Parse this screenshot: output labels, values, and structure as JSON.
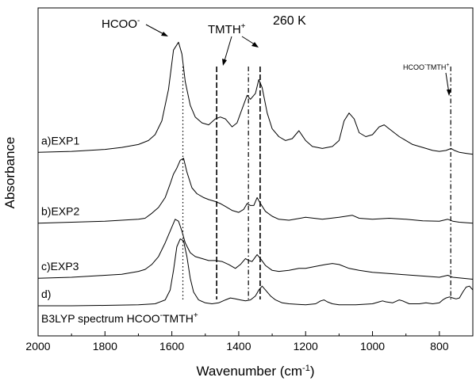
{
  "chart_data": {
    "type": "line",
    "title": "260 K",
    "xlabel": "Wavenumber (cm",
    "xlabel_sup": "-1",
    "xlabel_end": ")",
    "ylabel": "Absorbance",
    "xlim": [
      2000,
      700
    ],
    "x_reversed": true,
    "x_ticks": [
      2000,
      1800,
      1600,
      1400,
      1200,
      1000,
      800
    ],
    "y_ticks_shown": false,
    "grid": false,
    "series": [
      {
        "name": "a)EXP1",
        "label": "a)EXP1",
        "offset": 0.78,
        "points": [
          [
            2000,
            0.0
          ],
          [
            1900,
            0.005
          ],
          [
            1800,
            0.015
          ],
          [
            1750,
            0.025
          ],
          [
            1700,
            0.04
          ],
          [
            1670,
            0.06
          ],
          [
            1650,
            0.09
          ],
          [
            1630,
            0.16
          ],
          [
            1610,
            0.32
          ],
          [
            1595,
            0.52
          ],
          [
            1580,
            0.56
          ],
          [
            1570,
            0.5
          ],
          [
            1560,
            0.36
          ],
          [
            1545,
            0.24
          ],
          [
            1530,
            0.18
          ],
          [
            1510,
            0.15
          ],
          [
            1490,
            0.14
          ],
          [
            1470,
            0.17
          ],
          [
            1455,
            0.18
          ],
          [
            1440,
            0.17
          ],
          [
            1420,
            0.13
          ],
          [
            1405,
            0.15
          ],
          [
            1390,
            0.22
          ],
          [
            1375,
            0.29
          ],
          [
            1365,
            0.27
          ],
          [
            1350,
            0.3
          ],
          [
            1340,
            0.37
          ],
          [
            1330,
            0.33
          ],
          [
            1315,
            0.2
          ],
          [
            1300,
            0.12
          ],
          [
            1280,
            0.08
          ],
          [
            1260,
            0.06
          ],
          [
            1240,
            0.07
          ],
          [
            1220,
            0.11
          ],
          [
            1200,
            0.06
          ],
          [
            1180,
            0.03
          ],
          [
            1150,
            0.02
          ],
          [
            1120,
            0.03
          ],
          [
            1100,
            0.06
          ],
          [
            1085,
            0.16
          ],
          [
            1070,
            0.2
          ],
          [
            1055,
            0.17
          ],
          [
            1040,
            0.1
          ],
          [
            1020,
            0.08
          ],
          [
            1000,
            0.09
          ],
          [
            980,
            0.13
          ],
          [
            965,
            0.14
          ],
          [
            950,
            0.12
          ],
          [
            920,
            0.08
          ],
          [
            900,
            0.06
          ],
          [
            880,
            0.04
          ],
          [
            850,
            0.025
          ],
          [
            820,
            0.01
          ],
          [
            800,
            0.005
          ],
          [
            780,
            0.01
          ],
          [
            765,
            0.02
          ],
          [
            755,
            0.01
          ],
          [
            740,
            0.0
          ],
          [
            720,
            -0.005
          ],
          [
            700,
            -0.01
          ]
        ]
      },
      {
        "name": "b)EXP2",
        "label": "b)EXP2",
        "offset": 0.42,
        "points": [
          [
            2000,
            0.0
          ],
          [
            1900,
            0.005
          ],
          [
            1800,
            0.01
          ],
          [
            1750,
            0.015
          ],
          [
            1700,
            0.02
          ],
          [
            1680,
            0.025
          ],
          [
            1660,
            0.05
          ],
          [
            1640,
            0.08
          ],
          [
            1620,
            0.13
          ],
          [
            1605,
            0.2
          ],
          [
            1595,
            0.25
          ],
          [
            1585,
            0.28
          ],
          [
            1575,
            0.32
          ],
          [
            1565,
            0.33
          ],
          [
            1555,
            0.26
          ],
          [
            1540,
            0.18
          ],
          [
            1525,
            0.15
          ],
          [
            1505,
            0.13
          ],
          [
            1490,
            0.12
          ],
          [
            1470,
            0.11
          ],
          [
            1455,
            0.1
          ],
          [
            1440,
            0.085
          ],
          [
            1420,
            0.065
          ],
          [
            1400,
            0.055
          ],
          [
            1385,
            0.07
          ],
          [
            1375,
            0.1
          ],
          [
            1365,
            0.09
          ],
          [
            1355,
            0.09
          ],
          [
            1345,
            0.13
          ],
          [
            1335,
            0.1
          ],
          [
            1320,
            0.06
          ],
          [
            1300,
            0.035
          ],
          [
            1280,
            0.02
          ],
          [
            1250,
            0.015
          ],
          [
            1200,
            0.03
          ],
          [
            1150,
            0.02
          ],
          [
            1100,
            0.03
          ],
          [
            1060,
            0.04
          ],
          [
            1040,
            0.025
          ],
          [
            1000,
            0.02
          ],
          [
            950,
            0.025
          ],
          [
            900,
            0.02
          ],
          [
            850,
            0.012
          ],
          [
            800,
            0.01
          ],
          [
            775,
            0.02
          ],
          [
            760,
            0.01
          ],
          [
            740,
            0.005
          ],
          [
            700,
            0.0
          ]
        ]
      },
      {
        "name": "c)EXP3",
        "label": "c)EXP3",
        "offset": 0.14,
        "points": [
          [
            2000,
            0.0
          ],
          [
            1900,
            0.005
          ],
          [
            1800,
            0.015
          ],
          [
            1750,
            0.02
          ],
          [
            1700,
            0.035
          ],
          [
            1680,
            0.045
          ],
          [
            1660,
            0.07
          ],
          [
            1640,
            0.11
          ],
          [
            1620,
            0.18
          ],
          [
            1600,
            0.26
          ],
          [
            1590,
            0.3
          ],
          [
            1580,
            0.29
          ],
          [
            1570,
            0.24
          ],
          [
            1560,
            0.18
          ],
          [
            1545,
            0.13
          ],
          [
            1530,
            0.11
          ],
          [
            1510,
            0.1
          ],
          [
            1490,
            0.09
          ],
          [
            1470,
            0.09
          ],
          [
            1450,
            0.085
          ],
          [
            1430,
            0.07
          ],
          [
            1410,
            0.05
          ],
          [
            1395,
            0.07
          ],
          [
            1380,
            0.1
          ],
          [
            1370,
            0.09
          ],
          [
            1360,
            0.085
          ],
          [
            1345,
            0.12
          ],
          [
            1335,
            0.1
          ],
          [
            1320,
            0.065
          ],
          [
            1300,
            0.04
          ],
          [
            1280,
            0.035
          ],
          [
            1250,
            0.04
          ],
          [
            1220,
            0.05
          ],
          [
            1200,
            0.05
          ],
          [
            1170,
            0.06
          ],
          [
            1140,
            0.07
          ],
          [
            1120,
            0.075
          ],
          [
            1100,
            0.07
          ],
          [
            1070,
            0.05
          ],
          [
            1040,
            0.04
          ],
          [
            1000,
            0.03
          ],
          [
            960,
            0.025
          ],
          [
            920,
            0.02
          ],
          [
            880,
            0.015
          ],
          [
            840,
            0.01
          ],
          [
            800,
            0.005
          ],
          [
            775,
            0.015
          ],
          [
            760,
            0.005
          ],
          [
            730,
            0.0
          ],
          [
            700,
            -0.005
          ]
        ]
      },
      {
        "name": "d) B3LYP spectrum HCOO-TMTH+",
        "label": "d)",
        "offset": 0.0,
        "points": [
          [
            2000,
            0.0
          ],
          [
            1900,
            0.0
          ],
          [
            1800,
            0.002
          ],
          [
            1700,
            0.005
          ],
          [
            1650,
            0.01
          ],
          [
            1620,
            0.03
          ],
          [
            1605,
            0.08
          ],
          [
            1595,
            0.18
          ],
          [
            1585,
            0.3
          ],
          [
            1575,
            0.34
          ],
          [
            1565,
            0.33
          ],
          [
            1555,
            0.25
          ],
          [
            1545,
            0.14
          ],
          [
            1535,
            0.07
          ],
          [
            1520,
            0.03
          ],
          [
            1500,
            0.015
          ],
          [
            1480,
            0.01
          ],
          [
            1460,
            0.015
          ],
          [
            1440,
            0.03
          ],
          [
            1425,
            0.04
          ],
          [
            1410,
            0.035
          ],
          [
            1395,
            0.03
          ],
          [
            1380,
            0.025
          ],
          [
            1365,
            0.03
          ],
          [
            1350,
            0.05
          ],
          [
            1340,
            0.08
          ],
          [
            1330,
            0.1
          ],
          [
            1320,
            0.08
          ],
          [
            1305,
            0.05
          ],
          [
            1290,
            0.03
          ],
          [
            1270,
            0.015
          ],
          [
            1250,
            0.01
          ],
          [
            1200,
            0.005
          ],
          [
            1170,
            0.01
          ],
          [
            1155,
            0.025
          ],
          [
            1145,
            0.03
          ],
          [
            1135,
            0.02
          ],
          [
            1120,
            0.01
          ],
          [
            1100,
            0.005
          ],
          [
            1050,
            0.005
          ],
          [
            1000,
            0.01
          ],
          [
            980,
            0.02
          ],
          [
            970,
            0.025
          ],
          [
            960,
            0.02
          ],
          [
            940,
            0.015
          ],
          [
            920,
            0.03
          ],
          [
            910,
            0.025
          ],
          [
            890,
            0.01
          ],
          [
            860,
            0.01
          ],
          [
            840,
            0.015
          ],
          [
            820,
            0.01
          ],
          [
            800,
            0.015
          ],
          [
            790,
            0.03
          ],
          [
            780,
            0.04
          ],
          [
            770,
            0.045
          ],
          [
            760,
            0.04
          ],
          [
            750,
            0.035
          ],
          [
            740,
            0.04
          ],
          [
            730,
            0.07
          ],
          [
            720,
            0.095
          ],
          [
            710,
            0.1
          ],
          [
            700,
            0.08
          ]
        ]
      }
    ],
    "vertical_guides": [
      {
        "x": 1567,
        "style": "dotted"
      },
      {
        "x": 1466,
        "style": "dashed-bold"
      },
      {
        "x": 1371,
        "style": "dashdot"
      },
      {
        "x": 1336,
        "style": "dashed-bold"
      },
      {
        "x": 766,
        "style": "dashdot"
      }
    ],
    "annotations": [
      {
        "text": "HCOO",
        "sup": "-",
        "target_x": 1585
      },
      {
        "text": "TMTH",
        "sup": "+",
        "target_x": 1460
      },
      {
        "text": "HCOO",
        "sup": "-",
        "text2": "TMTH",
        "sup2": "+",
        "target_x": 770
      }
    ],
    "bottom_label_text": "B3LYP spectrum HCOO",
    "bottom_label_sup1": "-",
    "bottom_label_mid": "TMTH",
    "bottom_label_sup2": "+"
  }
}
